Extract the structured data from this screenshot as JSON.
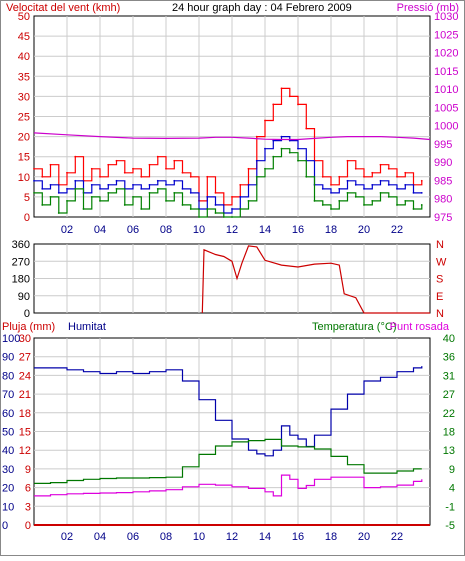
{
  "title": "24 hour graph day : 04 Febrero 2009",
  "colors": {
    "wind_speed": "#ff0000",
    "wind_avg": "#0000cc",
    "wind_gust": "#008000",
    "pressure": "#cc00cc",
    "direction": "#cc0000",
    "rain": "#cc0000",
    "humidity": "#0000aa",
    "temperature": "#007700",
    "dewpoint": "#dd00dd",
    "grid": "#cccccc"
  },
  "chart_data": [
    {
      "type": "line",
      "panel": "wind-pressure",
      "ylabel_left": "Velocitat del vent (kmh)",
      "ylabel_right": "Pressió (mb)",
      "ylim_left": [
        0,
        50
      ],
      "ylim_right": [
        975,
        1030
      ],
      "yticks_left": [
        "0",
        "5",
        "10",
        "15",
        "20",
        "25",
        "30",
        "35",
        "40",
        "45",
        "50"
      ],
      "yticks_right": [
        "975",
        "980",
        "985",
        "990",
        "995",
        "1000",
        "1005",
        "1010",
        "1015",
        "1020",
        "1025",
        "1030"
      ],
      "xlim": [
        0,
        24
      ],
      "xticks": [
        "02",
        "04",
        "06",
        "08",
        "10",
        "12",
        "14",
        "16",
        "18",
        "20",
        "22"
      ],
      "grid": true,
      "series": [
        {
          "key": "wind_speed",
          "x": [
            0,
            0.5,
            1,
            1.5,
            2,
            2.5,
            3,
            3.5,
            4,
            4.5,
            5,
            5.5,
            6,
            6.5,
            7,
            7.5,
            8,
            8.5,
            9,
            9.5,
            10,
            10.5,
            11,
            11.5,
            12,
            12.5,
            13,
            13.5,
            14,
            14.5,
            15,
            15.5,
            16,
            16.5,
            17,
            17.5,
            18,
            18.5,
            19,
            19.5,
            20,
            20.5,
            21,
            21.5,
            22,
            22.5,
            23,
            23.5
          ],
          "values": [
            12,
            10,
            13,
            8,
            11,
            15,
            9,
            12,
            10,
            13,
            14,
            11,
            12,
            10,
            13,
            15,
            12,
            14,
            11,
            10,
            4,
            10,
            6,
            3,
            5,
            8,
            12,
            20,
            24,
            28,
            32,
            30,
            28,
            22,
            14,
            10,
            8,
            10,
            14,
            12,
            10,
            11,
            13,
            12,
            10,
            11,
            8,
            9
          ]
        },
        {
          "key": "wind_avg",
          "x": [
            0,
            0.5,
            1,
            1.5,
            2,
            2.5,
            3,
            3.5,
            4,
            4.5,
            5,
            5.5,
            6,
            6.5,
            7,
            7.5,
            8,
            8.5,
            9,
            9.5,
            10,
            10.5,
            11,
            11.5,
            12,
            12.5,
            13,
            13.5,
            14,
            14.5,
            15,
            15.5,
            16,
            16.5,
            17,
            17.5,
            18,
            18.5,
            19,
            19.5,
            20,
            20.5,
            21,
            21.5,
            22,
            22.5,
            23,
            23.5
          ],
          "values": [
            9,
            7,
            8,
            6,
            7,
            9,
            6,
            8,
            7,
            8,
            9,
            7,
            8,
            7,
            8,
            9,
            8,
            9,
            7,
            6,
            2,
            5,
            3,
            1,
            2,
            5,
            8,
            14,
            17,
            19,
            20,
            19,
            17,
            14,
            8,
            7,
            6,
            7,
            9,
            8,
            7,
            8,
            9,
            8,
            7,
            8,
            6,
            6
          ]
        },
        {
          "key": "wind_gust",
          "x": [
            0,
            0.5,
            1,
            1.5,
            2,
            2.5,
            3,
            3.5,
            4,
            4.5,
            5,
            5.5,
            6,
            6.5,
            7,
            7.5,
            8,
            8.5,
            9,
            9.5,
            10,
            10.5,
            11,
            11.5,
            12,
            12.5,
            13,
            13.5,
            14,
            14.5,
            15,
            15.5,
            16,
            16.5,
            17,
            17.5,
            18,
            18.5,
            19,
            19.5,
            20,
            20.5,
            21,
            21.5,
            22,
            22.5,
            23,
            23.5
          ],
          "values": [
            6,
            3,
            5,
            1,
            4,
            7,
            2,
            5,
            4,
            6,
            7,
            3,
            5,
            2,
            6,
            7,
            4,
            6,
            3,
            2,
            0,
            2,
            1,
            0,
            0,
            2,
            4,
            10,
            12,
            15,
            17,
            16,
            14,
            10,
            4,
            3,
            2,
            4,
            6,
            5,
            3,
            4,
            6,
            5,
            3,
            4,
            2,
            3
          ]
        },
        {
          "key": "pressure",
          "axis": "right",
          "x": [
            0,
            2,
            4,
            6,
            8,
            10,
            11,
            12,
            13,
            14,
            15,
            16,
            17,
            18,
            19,
            20,
            21,
            22,
            23,
            24
          ],
          "values": [
            998,
            997.5,
            997,
            996.6,
            996.5,
            996.6,
            996.8,
            996.8,
            996.6,
            996.3,
            996.2,
            996.2,
            996.5,
            996.8,
            997,
            997,
            997,
            996.8,
            996.6,
            996.2
          ]
        }
      ]
    },
    {
      "type": "line",
      "panel": "wind-direction",
      "yticks_left": [
        "0",
        "90",
        "180",
        "270",
        "360"
      ],
      "yticks_right": [
        "N",
        "E",
        "S",
        "W",
        "N"
      ],
      "ylim": [
        0,
        360
      ],
      "xlim": [
        0,
        24
      ],
      "grid": true,
      "series": [
        {
          "key": "direction",
          "x": [
            10.2,
            10.3,
            11,
            11.5,
            12,
            12.3,
            12.6,
            13,
            13.5,
            14,
            15,
            16,
            17,
            18,
            18.5,
            18.8,
            19.5,
            20,
            24
          ],
          "values": [
            0,
            330,
            305,
            295,
            270,
            180,
            260,
            350,
            345,
            275,
            250,
            240,
            255,
            260,
            250,
            100,
            80,
            0,
            0
          ]
        }
      ]
    },
    {
      "type": "line",
      "panel": "rain-humidity-temperature",
      "ylabel_left_1": "Pluja (mm)",
      "ylabel_left_2": "Humitat",
      "ylabel_right": "Temperatura (°C)",
      "ylabel_right_2": "Punt rosada",
      "yticks_left_1": [
        "0",
        "3",
        "6",
        "9",
        "12",
        "15",
        "18",
        "21",
        "24",
        "27",
        "30"
      ],
      "yticks_left_2": [
        "0",
        "10",
        "20",
        "30",
        "40",
        "50",
        "60",
        "70",
        "80",
        "90",
        "100"
      ],
      "yticks_right": [
        "-5",
        "-1",
        "4",
        "9",
        "13",
        "18",
        "22",
        "27",
        "31",
        "36",
        "40"
      ],
      "ylim_humidity": [
        0,
        100
      ],
      "ylim_temperature": [
        -5,
        40
      ],
      "xlim": [
        0,
        24
      ],
      "grid": true,
      "series": [
        {
          "key": "rain",
          "axis": "left",
          "x": [
            0,
            24
          ],
          "values": [
            0,
            0
          ]
        },
        {
          "key": "humidity",
          "axis": "left",
          "x": [
            0,
            1,
            2,
            3,
            4,
            5,
            6,
            7,
            8,
            9,
            10,
            11,
            12,
            13,
            13.5,
            14,
            14.5,
            15,
            15.5,
            16,
            16.5,
            17,
            18,
            19,
            20,
            21,
            22,
            23,
            23.5
          ],
          "values": [
            84,
            84,
            83,
            82,
            81,
            82,
            81,
            82,
            83,
            77,
            67,
            56,
            46,
            40,
            38,
            37,
            40,
            53,
            48,
            46,
            42,
            48,
            62,
            70,
            77,
            79,
            82,
            84,
            85
          ]
        },
        {
          "key": "temperature",
          "axis": "right",
          "x": [
            0,
            1,
            2,
            3,
            4,
            5,
            6,
            7,
            8,
            9,
            10,
            11,
            12,
            13,
            14,
            15,
            16,
            17,
            18,
            19,
            20,
            21,
            22,
            23,
            23.5
          ],
          "values": [
            5,
            5.2,
            5.7,
            6,
            6.2,
            6.3,
            6.3,
            6.4,
            6.5,
            9,
            12,
            14,
            15,
            15.3,
            15.6,
            14,
            13.8,
            13.3,
            11.5,
            9.5,
            7.5,
            7.5,
            8,
            8.5,
            8.5
          ]
        },
        {
          "key": "dewpoint",
          "axis": "right",
          "x": [
            0,
            1,
            2,
            3,
            4,
            5,
            6,
            7,
            8,
            9,
            10,
            11,
            12,
            13,
            14,
            14.5,
            15,
            15.5,
            16,
            16.5,
            17,
            18,
            19,
            20,
            21,
            22,
            23,
            23.5
          ],
          "values": [
            2,
            2.3,
            2.5,
            2.6,
            2.7,
            2.8,
            3,
            3.2,
            3.5,
            4.2,
            4.8,
            4.6,
            4.2,
            3.8,
            3,
            2,
            7,
            6,
            3.8,
            4.5,
            6,
            6.5,
            6.5,
            4,
            4.2,
            4.6,
            5.5,
            6
          ]
        }
      ]
    }
  ]
}
